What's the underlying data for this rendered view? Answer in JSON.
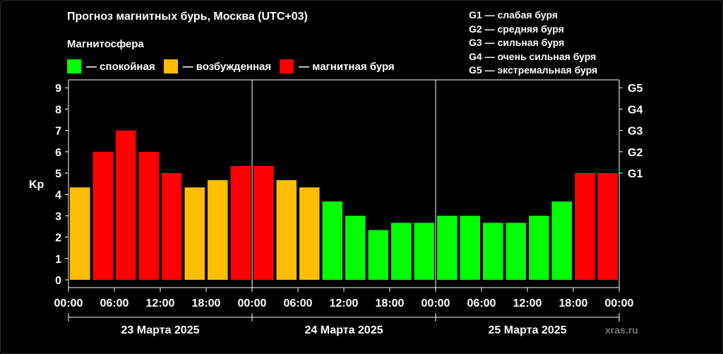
{
  "title": "Прогноз магнитных бурь, Москва (UTC+03)",
  "legend": {
    "heading": "Магнитосфера",
    "items": [
      {
        "label": "— спокойная",
        "color": "#00ff00"
      },
      {
        "label": "— возбужденная",
        "color": "#ffbf00"
      },
      {
        "label": "— магнитная буря",
        "color": "#ff0000"
      }
    ]
  },
  "g_levels": [
    "G1 — слабая буря",
    "G2 — средняя буря",
    "G3 — сильная буря",
    "G4 — очень сильная буря",
    "G5 — экстремальная буря"
  ],
  "watermark": "xras.ru",
  "chart_data": {
    "type": "bar",
    "ylabel": "Kp",
    "ylim": [
      0,
      9
    ],
    "y_ticks": [
      0,
      1,
      2,
      3,
      4,
      5,
      6,
      7,
      8,
      9
    ],
    "right_axis_ticks": [
      {
        "kp": 5,
        "label": "G1"
      },
      {
        "kp": 6,
        "label": "G2"
      },
      {
        "kp": 7,
        "label": "G3"
      },
      {
        "kp": 8,
        "label": "G4"
      },
      {
        "kp": 9,
        "label": "G5"
      }
    ],
    "x_tick_labels": [
      "00:00",
      "06:00",
      "12:00",
      "18:00",
      "00:00",
      "06:00",
      "12:00",
      "18:00",
      "00:00",
      "06:00",
      "12:00",
      "18:00",
      "00:00"
    ],
    "days": [
      "23 Марта 2025",
      "24 Марта 2025",
      "25 Марта 2025"
    ],
    "colors": {
      "quiet": "#00ff00",
      "active": "#ffbf00",
      "storm": "#ff0000"
    },
    "values": [
      4.33,
      6.0,
      7.0,
      6.0,
      5.0,
      4.33,
      4.67,
      5.33,
      5.33,
      4.67,
      4.33,
      3.67,
      3.0,
      2.33,
      2.67,
      2.67,
      3.0,
      3.0,
      2.67,
      2.67,
      3.0,
      3.67,
      5.0,
      5.0
    ],
    "levels": [
      "active",
      "storm",
      "storm",
      "storm",
      "storm",
      "active",
      "active",
      "storm",
      "storm",
      "active",
      "active",
      "quiet",
      "quiet",
      "quiet",
      "quiet",
      "quiet",
      "quiet",
      "quiet",
      "quiet",
      "quiet",
      "quiet",
      "quiet",
      "storm",
      "storm"
    ],
    "grid": false
  }
}
